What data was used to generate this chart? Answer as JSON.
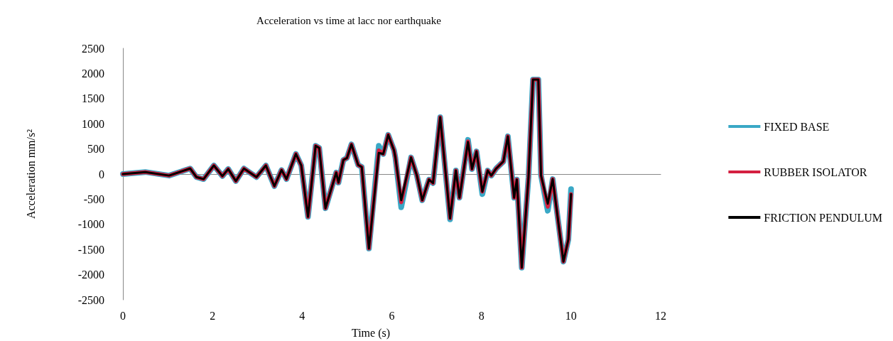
{
  "chart_data": {
    "type": "line",
    "title": "Acceleration vs time at lacc nor earthquake",
    "xlabel": "Time (s)",
    "ylabel": "Acceleration mm/s²",
    "x": [
      0,
      0.5,
      1.03,
      1.5,
      1.64,
      1.8,
      2.03,
      2.22,
      2.35,
      2.52,
      2.7,
      2.98,
      3.19,
      3.38,
      3.54,
      3.65,
      3.86,
      3.98,
      4.13,
      4.3,
      4.38,
      4.52,
      4.76,
      4.81,
      4.92,
      5.0,
      5.1,
      5.25,
      5.33,
      5.49,
      5.71,
      5.81,
      5.92,
      6.05,
      6.08,
      6.21,
      6.43,
      6.56,
      6.68,
      6.83,
      6.92,
      7.08,
      7.3,
      7.43,
      7.51,
      7.7,
      7.79,
      7.89,
      8.02,
      8.14,
      8.22,
      8.33,
      8.49,
      8.59,
      8.73,
      8.79,
      8.9,
      9.05,
      9.15,
      9.27,
      9.33,
      9.48,
      9.59,
      9.83,
      9.94,
      10.0
    ],
    "series": [
      {
        "name": "FIXED BASE",
        "color": "#3aa8c6",
        "values": [
          0,
          40,
          -30,
          110,
          -60,
          -100,
          170,
          -40,
          100,
          -140,
          110,
          -60,
          170,
          -240,
          80,
          -100,
          400,
          170,
          -850,
          560,
          520,
          -680,
          30,
          -170,
          280,
          320,
          590,
          180,
          140,
          -1480,
          560,
          400,
          780,
          470,
          330,
          -660,
          330,
          -30,
          -520,
          -110,
          -180,
          1130,
          -900,
          70,
          -470,
          680,
          100,
          450,
          -400,
          70,
          -30,
          110,
          250,
          750,
          -470,
          -110,
          -1860,
          -70,
          1880,
          1880,
          -30,
          -730,
          -100,
          -1740,
          -1300,
          -300
        ]
      },
      {
        "name": "RUBBER ISOLATOR",
        "color": "#d42040",
        "values": [
          0,
          40,
          -30,
          110,
          -60,
          -100,
          170,
          -40,
          100,
          -140,
          110,
          -60,
          170,
          -240,
          80,
          -100,
          400,
          170,
          -850,
          560,
          520,
          -680,
          30,
          -170,
          280,
          320,
          590,
          180,
          140,
          -1480,
          470,
          400,
          780,
          470,
          330,
          -560,
          330,
          -30,
          -520,
          -110,
          -180,
          1130,
          -880,
          70,
          -470,
          650,
          100,
          450,
          -350,
          70,
          -30,
          110,
          250,
          750,
          -470,
          -110,
          -1860,
          -70,
          1880,
          1880,
          -30,
          -650,
          -100,
          -1740,
          -1300,
          -400
        ]
      },
      {
        "name": "FRICTION PENDULUM",
        "color": "#000000",
        "values": [
          0,
          40,
          -30,
          110,
          -60,
          -100,
          170,
          -40,
          100,
          -140,
          110,
          -60,
          170,
          -240,
          80,
          -100,
          400,
          170,
          -850,
          560,
          520,
          -680,
          30,
          -170,
          280,
          320,
          590,
          180,
          140,
          -1480,
          420,
          400,
          780,
          470,
          330,
          -520,
          330,
          -30,
          -520,
          -110,
          -180,
          1130,
          -880,
          70,
          -470,
          640,
          100,
          450,
          -350,
          70,
          -30,
          110,
          250,
          750,
          -470,
          -110,
          -1860,
          -70,
          1880,
          1880,
          -30,
          -590,
          -100,
          -1740,
          -1300,
          -400
        ]
      }
    ],
    "xlim": [
      0,
      12
    ],
    "xticks": [
      0,
      2,
      4,
      6,
      8,
      10,
      12
    ],
    "ylim": [
      -2500,
      2500
    ],
    "yticks": [
      -2500,
      -2000,
      -1500,
      -1000,
      -500,
      0,
      500,
      1000,
      1500,
      2000,
      2500
    ],
    "legend": "right",
    "marker": "none",
    "line_style": "solid"
  }
}
